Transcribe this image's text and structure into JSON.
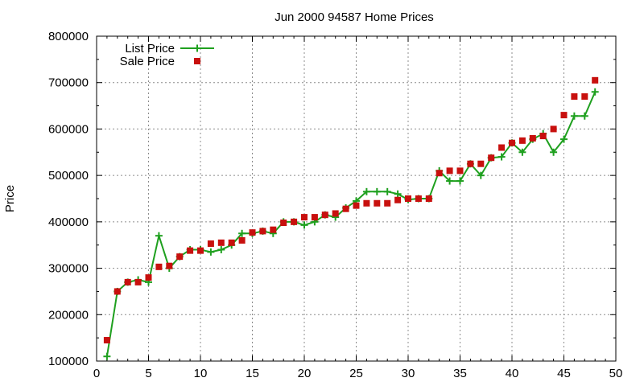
{
  "chart_data": {
    "type": "line",
    "title": "Jun 2000 94587 Home Prices",
    "xlabel": "",
    "ylabel": "Price",
    "xlim": [
      0,
      50
    ],
    "ylim": [
      100000,
      800000
    ],
    "xticks": [
      0,
      5,
      10,
      15,
      20,
      25,
      30,
      35,
      40,
      45,
      50
    ],
    "yticks": [
      100000,
      200000,
      300000,
      400000,
      500000,
      600000,
      700000,
      800000
    ],
    "grid": true,
    "legend_position": "top-left",
    "series": [
      {
        "name": "List Price",
        "style": "line-with-plus-markers",
        "color": "#1fa01f",
        "points": [
          [
            1,
            110000
          ],
          [
            2,
            250000
          ],
          [
            3,
            270000
          ],
          [
            4,
            275000
          ],
          [
            5,
            270000
          ],
          [
            6,
            370000
          ],
          [
            7,
            300000
          ],
          [
            8,
            325000
          ],
          [
            9,
            340000
          ],
          [
            10,
            340000
          ],
          [
            11,
            335000
          ],
          [
            12,
            340000
          ],
          [
            13,
            350000
          ],
          [
            14,
            375000
          ],
          [
            15,
            375000
          ],
          [
            16,
            380000
          ],
          [
            17,
            375000
          ],
          [
            18,
            400000
          ],
          [
            19,
            400000
          ],
          [
            20,
            393000
          ],
          [
            21,
            400000
          ],
          [
            22,
            415000
          ],
          [
            23,
            410000
          ],
          [
            24,
            430000
          ],
          [
            25,
            445000
          ],
          [
            26,
            465000
          ],
          [
            27,
            465000
          ],
          [
            28,
            465000
          ],
          [
            29,
            460000
          ],
          [
            30,
            448000
          ],
          [
            31,
            450000
          ],
          [
            32,
            450000
          ],
          [
            33,
            510000
          ],
          [
            34,
            488000
          ],
          [
            35,
            488000
          ],
          [
            36,
            525000
          ],
          [
            37,
            500000
          ],
          [
            38,
            538000
          ],
          [
            39,
            540000
          ],
          [
            40,
            570000
          ],
          [
            41,
            550000
          ],
          [
            42,
            578000
          ],
          [
            43,
            590000
          ],
          [
            44,
            550000
          ],
          [
            45,
            578000
          ],
          [
            46,
            628000
          ],
          [
            47,
            628000
          ],
          [
            48,
            680000
          ]
        ]
      },
      {
        "name": "Sale Price",
        "style": "square-markers",
        "color": "#c8100e",
        "points": [
          [
            1,
            145000
          ],
          [
            2,
            250000
          ],
          [
            3,
            270000
          ],
          [
            4,
            270000
          ],
          [
            5,
            280000
          ],
          [
            6,
            303000
          ],
          [
            7,
            305000
          ],
          [
            8,
            325000
          ],
          [
            9,
            338000
          ],
          [
            10,
            338000
          ],
          [
            11,
            353000
          ],
          [
            12,
            355000
          ],
          [
            13,
            355000
          ],
          [
            14,
            360000
          ],
          [
            15,
            377000
          ],
          [
            16,
            380000
          ],
          [
            17,
            383000
          ],
          [
            18,
            398000
          ],
          [
            19,
            400000
          ],
          [
            20,
            410000
          ],
          [
            21,
            410000
          ],
          [
            22,
            415000
          ],
          [
            23,
            418000
          ],
          [
            24,
            428000
          ],
          [
            25,
            435000
          ],
          [
            26,
            440000
          ],
          [
            27,
            440000
          ],
          [
            28,
            440000
          ],
          [
            29,
            447000
          ],
          [
            30,
            450000
          ],
          [
            31,
            450000
          ],
          [
            32,
            450000
          ],
          [
            33,
            505000
          ],
          [
            34,
            510000
          ],
          [
            35,
            510000
          ],
          [
            36,
            525000
          ],
          [
            37,
            525000
          ],
          [
            38,
            538000
          ],
          [
            39,
            560000
          ],
          [
            40,
            570000
          ],
          [
            41,
            575000
          ],
          [
            42,
            580000
          ],
          [
            43,
            585000
          ],
          [
            44,
            600000
          ],
          [
            45,
            630000
          ],
          [
            46,
            670000
          ],
          [
            47,
            670000
          ],
          [
            48,
            705000
          ]
        ]
      }
    ]
  }
}
